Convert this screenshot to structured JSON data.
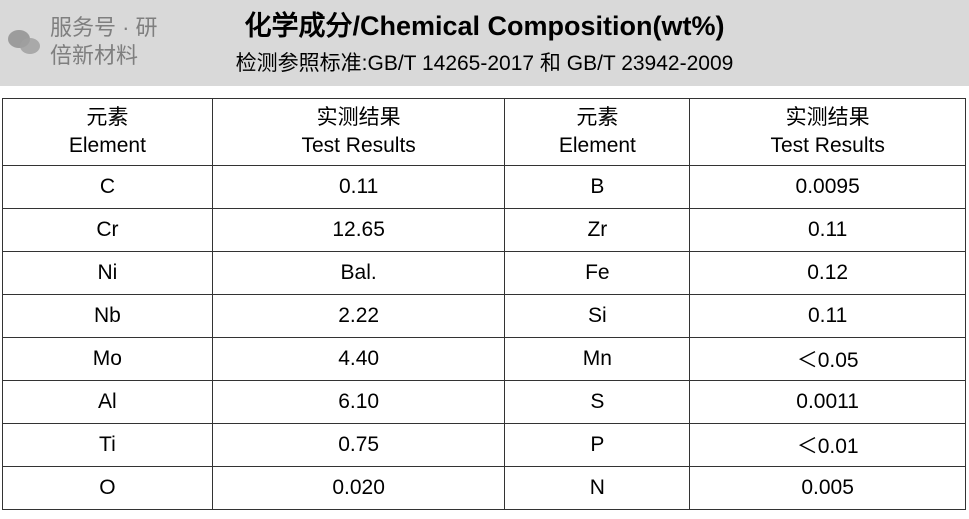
{
  "header": {
    "title": "化学成分/Chemical Composition(wt%)",
    "subtitle": "检测参照标准:GB/T 14265-2017 和 GB/T 23942-2009"
  },
  "table": {
    "headers": [
      {
        "cn": "元素",
        "en": "Element"
      },
      {
        "cn": "实测结果",
        "en": "Test Results"
      },
      {
        "cn": "元素",
        "en": "Element"
      },
      {
        "cn": "实测结果",
        "en": "Test Results"
      }
    ],
    "rows": [
      [
        "C",
        "0.11",
        "B",
        "0.0095"
      ],
      [
        "Cr",
        "12.65",
        "Zr",
        "0.11"
      ],
      [
        "Ni",
        "Bal.",
        "Fe",
        "0.12"
      ],
      [
        "Nb",
        "2.22",
        "Si",
        "0.11"
      ],
      [
        "Mo",
        "4.40",
        "Mn",
        "＜0.05"
      ],
      [
        "Al",
        "6.10",
        "S",
        "0.0011"
      ],
      [
        "Ti",
        "0.75",
        "P",
        "＜0.01"
      ],
      [
        "O",
        "0.020",
        "N",
        "0.005"
      ]
    ]
  },
  "watermark": {
    "text": "服务号 · 研倍新材料",
    "icon": "wechat-icon"
  }
}
